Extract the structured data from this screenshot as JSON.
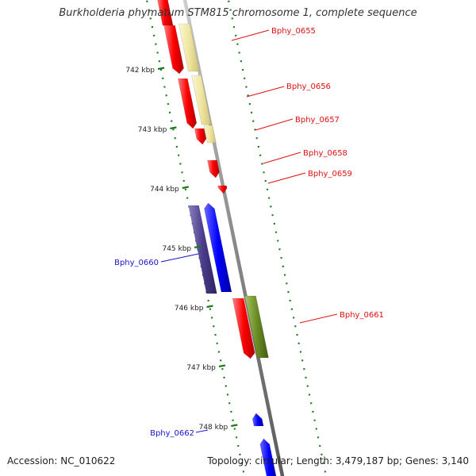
{
  "title": "Burkholderia phymatum STM815 chromosome 1, complete sequence",
  "accession": "Accession: NC_010622",
  "summary": "Topology: circular; Length: 3,479,187 bp; Genes: 3,140",
  "ticks": [
    {
      "label": "742 kbp",
      "kbp": 742
    },
    {
      "label": "743 kbp",
      "kbp": 743
    },
    {
      "label": "744 kbp",
      "kbp": 744
    },
    {
      "label": "745 kbp",
      "kbp": 745
    },
    {
      "label": "746 kbp",
      "kbp": 746
    },
    {
      "label": "747 kbp",
      "kbp": 747
    },
    {
      "label": "748 kbp",
      "kbp": 748
    }
  ],
  "genes": [
    {
      "label": "Bphy_0655",
      "color": "#e01010"
    },
    {
      "label": "Bphy_0656",
      "color": "#e01010"
    },
    {
      "label": "Bphy_0657",
      "color": "#e01010"
    },
    {
      "label": "Bphy_0658",
      "color": "#e01010"
    },
    {
      "label": "Bphy_0659",
      "color": "#e01010"
    },
    {
      "label": "Bphy_0660",
      "color": "#1515cc"
    },
    {
      "label": "Bphy_0661",
      "color": "#e01010"
    },
    {
      "label": "Bphy_0662",
      "color": "#1515cc"
    }
  ],
  "colors": {
    "backbone": "#8a8a8a",
    "forward_cds": "#ff0000",
    "forward_feature": "#f0e6a0",
    "forward_rna": "#6b8e23",
    "reverse_cds": "#0000ff",
    "reverse_feature": "#4b3d8c",
    "ruler": "#1f7a1f"
  }
}
